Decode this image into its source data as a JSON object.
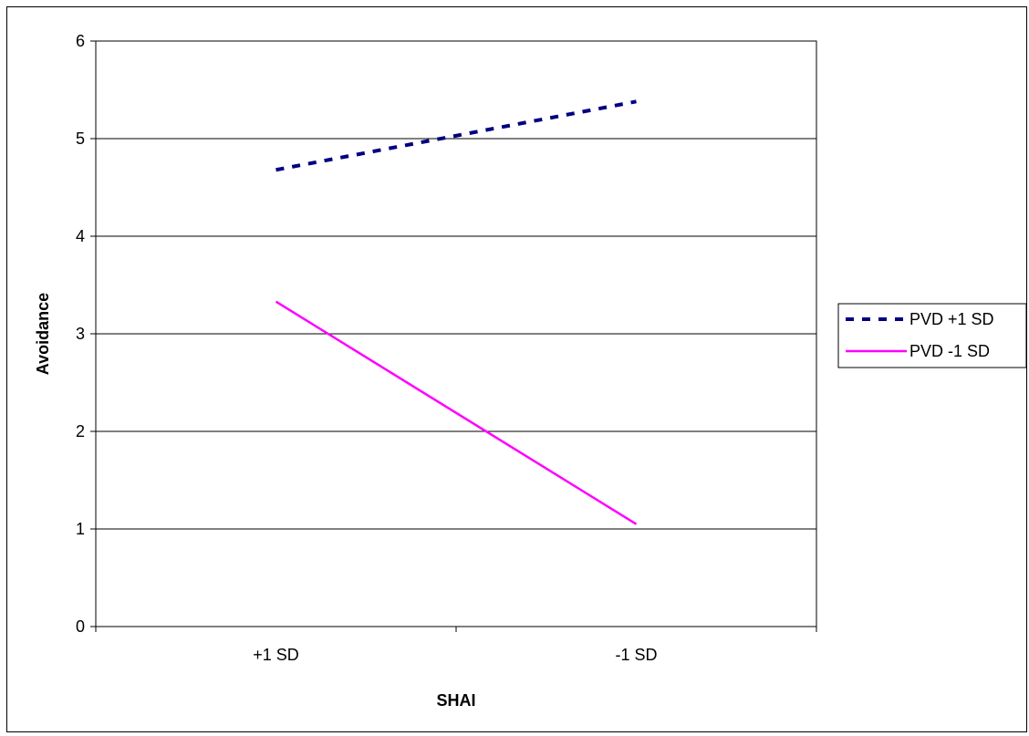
{
  "chart_data": {
    "type": "line",
    "categories": [
      "+1 SD",
      "-1 SD"
    ],
    "series": [
      {
        "name": "PVD +1 SD",
        "values": [
          4.68,
          5.38
        ],
        "color": "#000080",
        "dash": "dashed"
      },
      {
        "name": "PVD -1 SD",
        "values": [
          3.33,
          1.05
        ],
        "color": "#FF00FF",
        "dash": "solid"
      }
    ],
    "title": "",
    "xlabel": "SHAI",
    "ylabel": "Avoidance",
    "ylim": [
      0,
      6
    ],
    "yticks": [
      "0",
      "1",
      "2",
      "3",
      "4",
      "5",
      "6"
    ],
    "grid": true,
    "legend_position": "right"
  }
}
